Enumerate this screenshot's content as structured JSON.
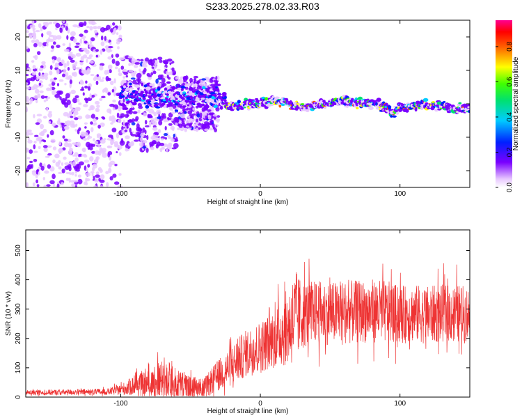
{
  "figure": {
    "title": "S233.2025.278.02.33.R03"
  },
  "chart_data": [
    {
      "type": "heatmap",
      "xlabel": "Height of straight line (km)",
      "ylabel": "Frequency (Hz)",
      "xlim": [
        -168,
        150
      ],
      "ylim": [
        -25,
        25
      ],
      "xticks": [
        -100,
        0,
        100
      ],
      "yticks": [
        -20,
        -10,
        0,
        10,
        20
      ],
      "grid": false,
      "colorbar": {
        "label": "Normalized spectral amplitude",
        "range": [
          0,
          0.95
        ],
        "ticks": [
          0.0,
          0.2,
          0.4,
          0.6,
          0.8
        ],
        "colormap": "rainbow (white-violet-blue-cyan-green-yellow-red-magenta)"
      },
      "ridge": {
        "description_x_km": [
          -25,
          -10,
          0,
          10,
          20,
          30,
          40,
          50,
          60,
          70,
          80,
          90,
          95,
          100,
          110,
          120,
          130,
          140,
          150
        ],
        "frequency_hz": [
          -1,
          0,
          0,
          1,
          0,
          -1,
          -0.5,
          0,
          1,
          0,
          0,
          -1,
          -3,
          -1,
          -0.5,
          -0.5,
          -0.5,
          -1.5,
          -1.5
        ]
      },
      "noise_region_x_km": [
        -168,
        -30
      ]
    },
    {
      "type": "line",
      "xlabel": "Height of straight line (km)",
      "ylabel": "SNR (10 * v/v)",
      "xlim": [
        -168,
        150
      ],
      "ylim": [
        0,
        570
      ],
      "xticks": [
        -100,
        0,
        100
      ],
      "yticks": [
        0,
        100,
        200,
        300,
        400,
        500
      ],
      "color": "#ee3333",
      "grid": false,
      "envelope": {
        "x": [
          -168,
          -110,
          -100,
          -90,
          -80,
          -70,
          -60,
          -50,
          -40,
          -30,
          -20,
          -10,
          0,
          10,
          20,
          25,
          30,
          40,
          50,
          60,
          70,
          80,
          90,
          100,
          110,
          120,
          130,
          140,
          150
        ],
        "mean": [
          15,
          18,
          25,
          40,
          45,
          60,
          45,
          35,
          30,
          75,
          110,
          150,
          170,
          200,
          240,
          270,
          280,
          290,
          285,
          290,
          290,
          295,
          290,
          280,
          285,
          280,
          285,
          285,
          280
        ],
        "spread": [
          10,
          12,
          20,
          40,
          50,
          90,
          60,
          40,
          40,
          60,
          80,
          90,
          100,
          110,
          150,
          180,
          130,
          120,
          120,
          120,
          120,
          120,
          120,
          110,
          110,
          110,
          110,
          110,
          110
        ]
      }
    }
  ]
}
